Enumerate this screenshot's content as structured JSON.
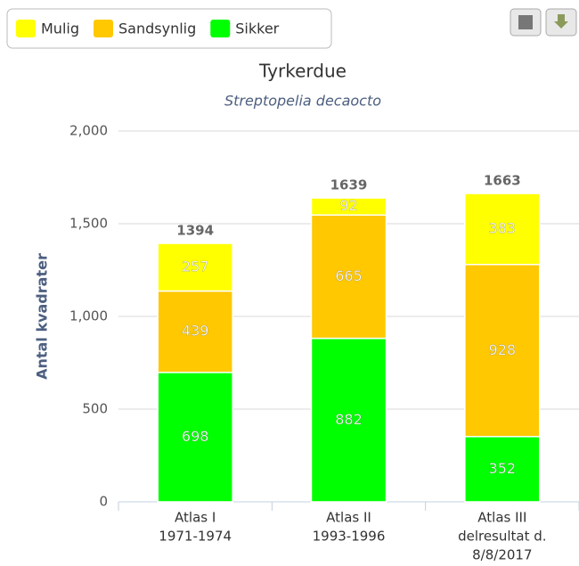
{
  "chart_data": {
    "type": "stacked-bar",
    "title": "Tyrkerdue",
    "subtitle": "Streptopelia decaocto",
    "y_label": "Antal kvadrater",
    "categories": [
      [
        "Atlas I",
        "1971-1974"
      ],
      [
        "Atlas II",
        "1993-1996"
      ],
      [
        "Atlas III",
        "delresultat d.",
        "8/8/2017"
      ]
    ],
    "series": [
      {
        "name": "Mulig",
        "color": "#ffff00",
        "values": [
          257,
          92,
          383
        ]
      },
      {
        "name": "Sandsynlig",
        "color": "#ffc800",
        "values": [
          439,
          665,
          928
        ]
      },
      {
        "name": "Sikker",
        "color": "#00ff00",
        "values": [
          698,
          882,
          352
        ]
      }
    ],
    "stack_labels": [
      1394,
      1639,
      1663
    ],
    "ylim": [
      0,
      2000
    ],
    "yticks": [
      0,
      500,
      {
        "value": 1000,
        "label": "1,000"
      },
      {
        "value": 1500,
        "label": "1,500"
      },
      {
        "value": 2000,
        "label": "2,000"
      }
    ],
    "grid": true,
    "legend": "top-left"
  }
}
